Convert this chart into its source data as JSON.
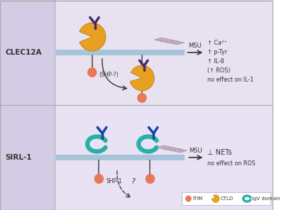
{
  "panel1_label": "CLEC12A",
  "panel2_label": "SIRL-1",
  "panel1_text": [
    "↑ Ca²⁺",
    "↑ p-Tyr",
    "↑ IL-8",
    "(↑ ROS)",
    "no effect on IL-1"
  ],
  "panel2_text_1": "⊥ NETs",
  "panel2_text_2": "no effect on ROS",
  "msu_label": "MSU",
  "shp_q_label": "(SHP-?)",
  "shp1_label": "SHP-1",
  "q_label": "?",
  "left_bg": "#d4cce4",
  "top_right_bg": "#e8e2f0",
  "bot_right_bg": "#e8e2f4",
  "membrane_color": "#a8c4d8",
  "itim_color": "#e87858",
  "ctld_color": "#e8a020",
  "igv_color": "#28b0a8",
  "receptor1_color": "#4a2870",
  "receptor2_color": "#1840a8",
  "label_color": "#333333",
  "border_color": "#aaaaaa",
  "crystal_color": "#c0a8b8",
  "legend_itim": "#e87858",
  "legend_ctld": "#e8a020",
  "legend_igv": "#28b0a8"
}
